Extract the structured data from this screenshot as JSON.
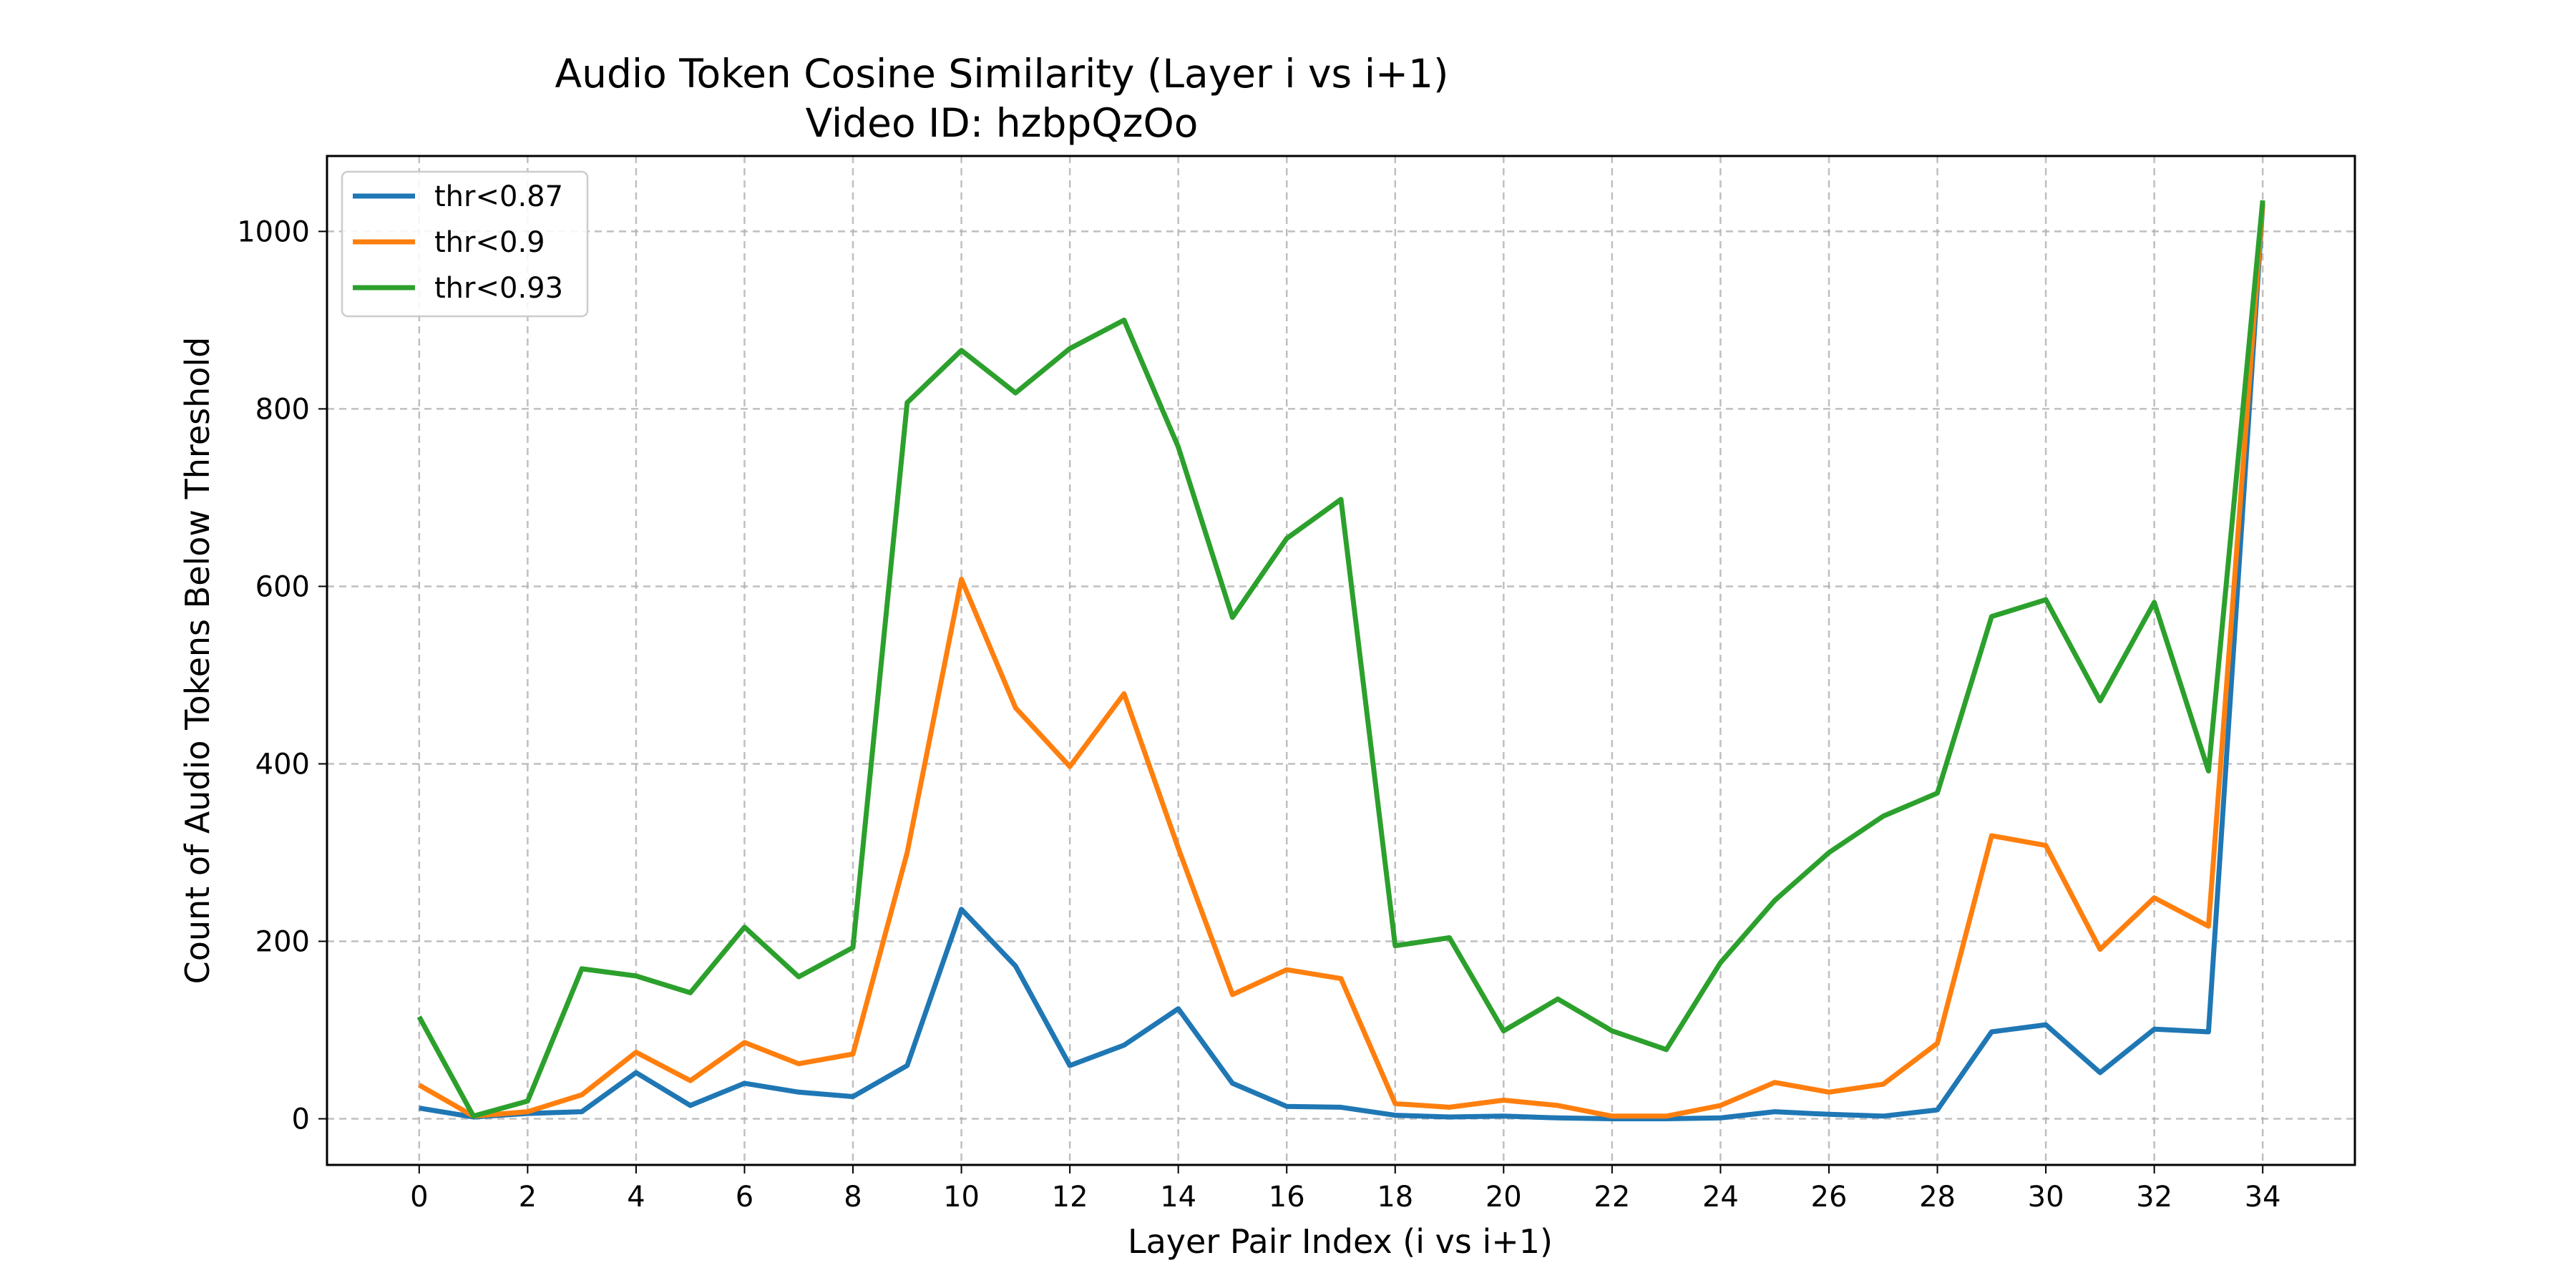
{
  "chart_data": {
    "type": "line",
    "title": "Audio Token Cosine Similarity (Layer i vs i+1)",
    "subtitle": "Video ID: hzbpQzOo",
    "xlabel": "Layer Pair Index (i vs i+1)",
    "ylabel": "Count of Audio Tokens Below Threshold",
    "xlim": [
      -1.7,
      35.7
    ],
    "ylim": [
      -52,
      1085
    ],
    "x_ticks": [
      0,
      2,
      4,
      6,
      8,
      10,
      12,
      14,
      16,
      18,
      20,
      22,
      24,
      26,
      28,
      30,
      32,
      34
    ],
    "y_ticks": [
      0,
      200,
      400,
      600,
      800,
      1000
    ],
    "grid": true,
    "legend_position": "top-left",
    "x": [
      0,
      1,
      2,
      3,
      4,
      5,
      6,
      7,
      8,
      9,
      10,
      11,
      12,
      13,
      14,
      15,
      16,
      17,
      18,
      19,
      20,
      21,
      22,
      23,
      24,
      25,
      26,
      27,
      28,
      29,
      30,
      31,
      32,
      33,
      34
    ],
    "series": [
      {
        "name": "thr<0.87",
        "color": "#1f77b4",
        "values": [
          12,
          2,
          6,
          8,
          52,
          15,
          40,
          30,
          25,
          60,
          236,
          172,
          60,
          83,
          124,
          40,
          14,
          13,
          4,
          2,
          3,
          1,
          0,
          0,
          1,
          8,
          5,
          3,
          10,
          98,
          106,
          52,
          101,
          98,
          1030
        ]
      },
      {
        "name": "thr<0.9",
        "color": "#ff7f0e",
        "values": [
          38,
          3,
          8,
          27,
          75,
          43,
          86,
          62,
          73,
          300,
          608,
          463,
          397,
          479,
          305,
          140,
          168,
          158,
          17,
          13,
          21,
          15,
          3,
          3,
          15,
          41,
          30,
          39,
          85,
          319,
          308,
          191,
          249,
          217,
          1032
        ]
      },
      {
        "name": "thr<0.93",
        "color": "#2ca02c",
        "values": [
          115,
          3,
          20,
          169,
          161,
          142,
          216,
          160,
          193,
          807,
          866,
          818,
          868,
          900,
          757,
          565,
          654,
          698,
          195,
          204,
          99,
          135,
          99,
          78,
          176,
          246,
          300,
          341,
          367,
          566,
          585,
          471,
          582,
          392,
          1035
        ]
      }
    ]
  }
}
